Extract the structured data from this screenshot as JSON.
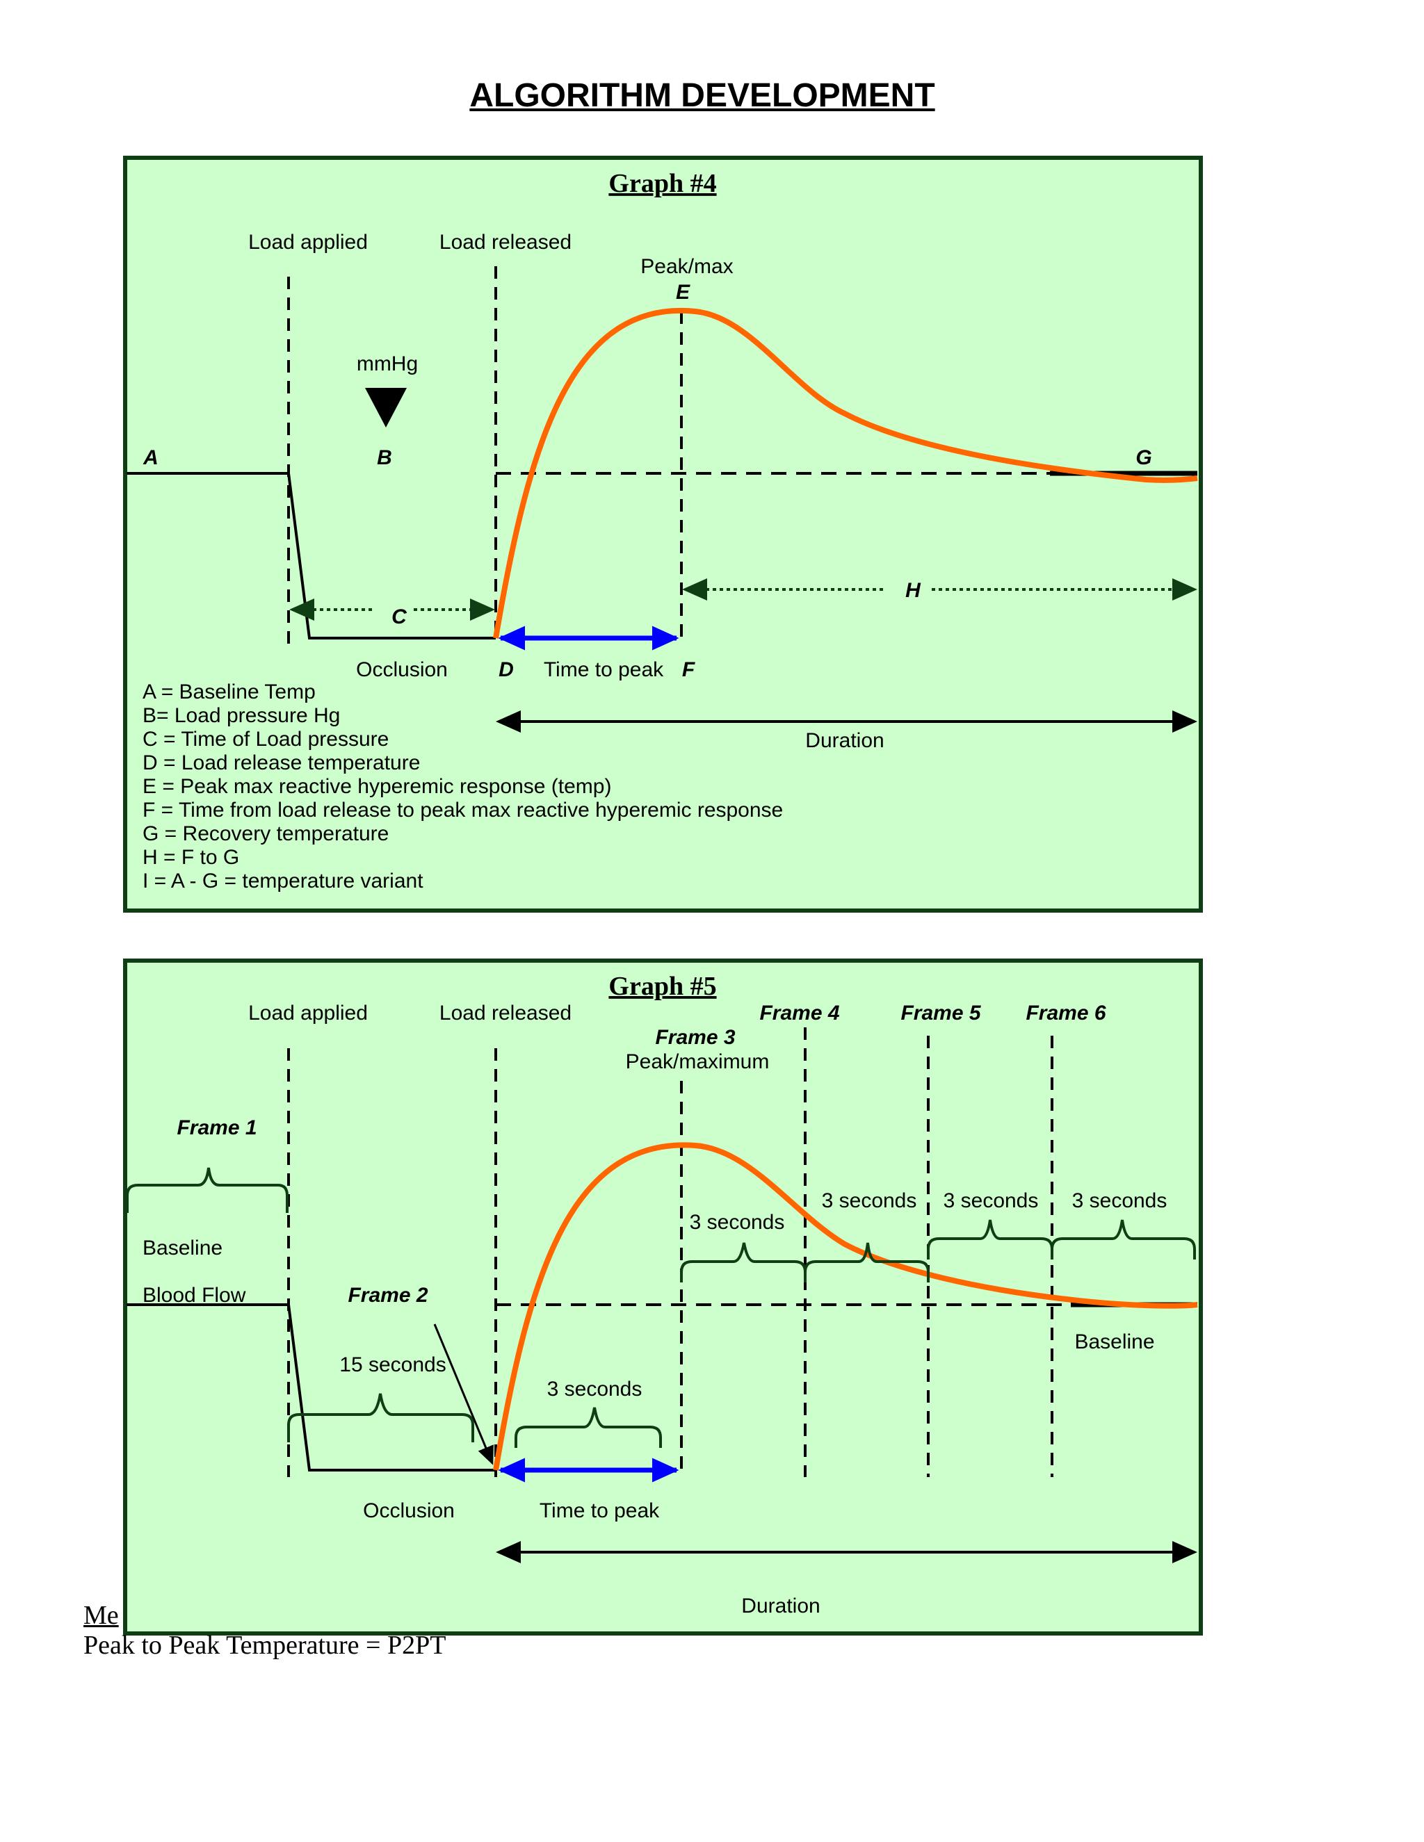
{
  "page": {
    "title": "ALGORITHM DEVELOPMENT",
    "footer_partial": "Me",
    "footer_line": "Peak to  Peak  Temperature  = P2PT"
  },
  "colors": {
    "panel_bg": "#ccffcc",
    "panel_border": "#0f3d14",
    "curve": "#ff6600",
    "arrow_blue": "#0000ff",
    "dotted_arrow": "#0f3d14"
  },
  "graph4": {
    "title": "Graph  #4",
    "load_applied": "Load applied",
    "load_released": "Load released",
    "peak_max": "Peak/max",
    "mmhg": "mmHg",
    "label_a": "A",
    "label_b": "B",
    "label_c": "C",
    "label_d": "D",
    "label_e": "E",
    "label_f": "F",
    "label_g": "G",
    "label_h": "H",
    "occlusion": "Occlusion",
    "time_to_peak": "Time to peak",
    "duration": "Duration",
    "legend": [
      "A = Baseline Temp",
      "B= Load pressure Hg",
      "C = Time of Load pressure",
      "D = Load release temperature",
      "E =  Peak max reactive  hyperemic response (temp)",
      "F = Time from load release to peak max reactive hyperemic response",
      "G = Recovery temperature",
      "H = F to G",
      "I   = A - G = temperature variant"
    ]
  },
  "graph5": {
    "title": "Graph  #5",
    "load_applied": "Load applied",
    "load_released": "Load released",
    "frame1": "Frame 1",
    "frame2": "Frame 2",
    "frame3": "Frame 3",
    "frame4": "Frame 4",
    "frame5": "Frame 5",
    "frame6": "Frame 6",
    "peak_maximum": "Peak/maximum",
    "baseline": "Baseline",
    "blood_flow": "Blood Flow",
    "fifteen_seconds": "15 seconds",
    "three_seconds": "3 seconds",
    "baseline_right": "Baseline",
    "occlusion": "Occlusion",
    "time_to_peak": "Time to peak",
    "duration": "Duration"
  }
}
